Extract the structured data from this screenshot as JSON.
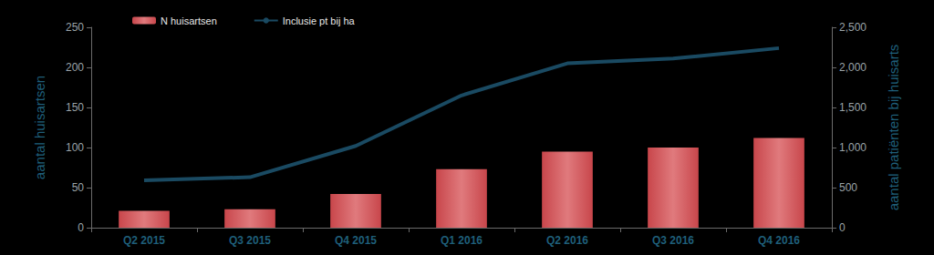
{
  "chart_data": {
    "type": "bar",
    "categories": [
      "Q2 2015",
      "Q3 2015",
      "Q4 2015",
      "Q1 2016",
      "Q2 2016",
      "Q3 2016",
      "Q4 2016"
    ],
    "series": [
      {
        "name": "N huisartsen",
        "type": "bar",
        "color": "#c8464b",
        "values": [
          21,
          23,
          42,
          73,
          95,
          100,
          112
        ]
      },
      {
        "name": "Inclusie pt bij ha",
        "type": "line",
        "color": "#1a4a62",
        "axis": "y2",
        "values": [
          590,
          630,
          1020,
          1650,
          2050,
          2110,
          2240
        ]
      }
    ],
    "y_label": "aantal huisartsen",
    "y2_label": "aantal patiënten bij huisarts",
    "ylim": [
      0,
      250
    ],
    "yticks": [
      0,
      50,
      100,
      150,
      200,
      250
    ],
    "y2lim": [
      0,
      2500
    ],
    "y2ticks": [
      0,
      500,
      1000,
      1500,
      2000,
      2500
    ],
    "grid": false,
    "legend": "upper left"
  }
}
